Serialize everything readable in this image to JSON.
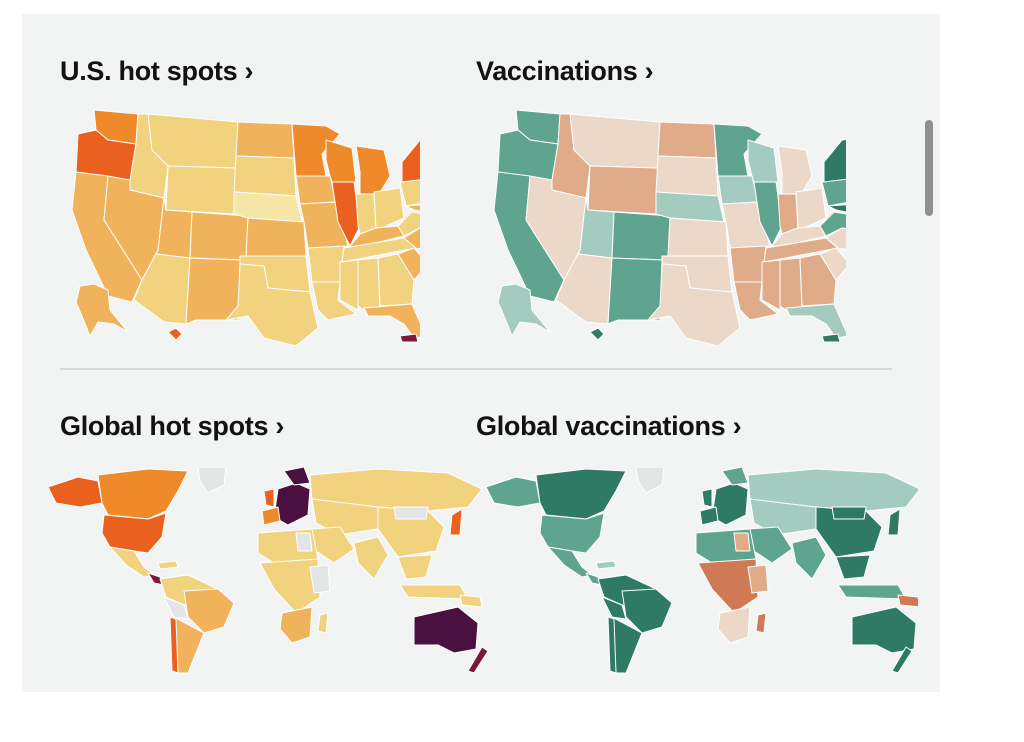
{
  "cards": {
    "us_hot_spots": {
      "title": "U.S. hot spots ›"
    },
    "vaccinations": {
      "title": "Vaccinations ›"
    },
    "global_hot_spots": {
      "title": "Global hot spots ›"
    },
    "global_vaccinations": {
      "title": "Global vaccinations ›"
    }
  },
  "colors": {
    "hot_lightest": "#f5e6a6",
    "hot_light": "#f0d27f",
    "hot_mid": "#f0b35c",
    "hot_orange": "#ee8a2a",
    "hot_red_orange": "#e9601f",
    "hot_dark": "#7a1a3a",
    "hot_darkest": "#4a1040",
    "no_data": "#e4e5e6",
    "vax_dark": "#2f7a64",
    "vax_mid": "#5fa48f",
    "vax_light": "#a4cbc0",
    "vax_beige": "#ecd8c8",
    "vax_tan": "#dfab88",
    "vax_brown": "#cf7a55"
  }
}
